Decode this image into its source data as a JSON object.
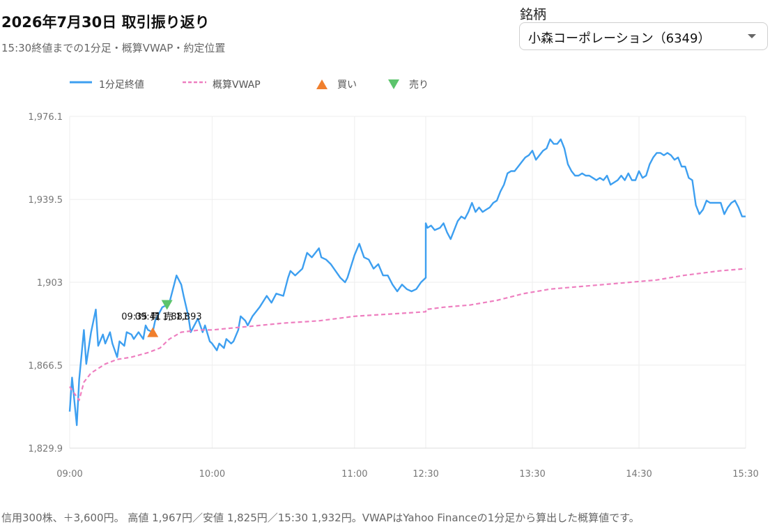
{
  "header": {
    "title": "2026年7月30日 取引振り返り",
    "subtitle": "15:30終値までの1分足・概算VWAP・約定位置"
  },
  "selector": {
    "label": "銘柄",
    "value": "小森コーポレーション（6349）"
  },
  "legend": {
    "close_label": "1分足終値",
    "vwap_label": "概算VWAP",
    "buy_label": "買い",
    "sell_label": "売り"
  },
  "footer": {
    "note": "信用300株、＋3,600円。 高値 1,967円／安値 1,825円／15:30 1,932円。VWAPはYahoo Financeの1分足から算出した概算値です。"
  },
  "colors": {
    "close": "#3d9ff0",
    "vwap": "#ee7fc0",
    "buy": "#f07f2d",
    "sell": "#5cc46c",
    "grid": "#eeeeee"
  },
  "chart_data": {
    "type": "line",
    "y_ticks": [
      "1,829.9",
      "1,866.5",
      "1,903",
      "1,939.5",
      "1,976.1"
    ],
    "ylim": [
      1829.9,
      1976.1
    ],
    "x_ticks": [
      "09:00",
      "10:00",
      "11:00",
      "12:30",
      "13:30",
      "14:30",
      "15:30"
    ],
    "grid": true,
    "legend_position": "top-left",
    "series": [
      {
        "name": "1分足終値",
        "style": "solid",
        "points": [
          [
            "09:00",
            1846
          ],
          [
            "09:01",
            1861
          ],
          [
            "09:03",
            1840
          ],
          [
            "09:04",
            1860
          ],
          [
            "09:06",
            1882
          ],
          [
            "09:07",
            1867
          ],
          [
            "09:09",
            1881
          ],
          [
            "09:11",
            1891
          ],
          [
            "09:12",
            1875
          ],
          [
            "09:14",
            1880
          ],
          [
            "09:15",
            1876
          ],
          [
            "09:17",
            1881
          ],
          [
            "09:18",
            1876
          ],
          [
            "09:20",
            1870
          ],
          [
            "09:21",
            1877
          ],
          [
            "09:23",
            1875
          ],
          [
            "09:24",
            1881
          ],
          [
            "09:26",
            1880
          ],
          [
            "09:27",
            1878
          ],
          [
            "09:29",
            1881
          ],
          [
            "09:31",
            1878
          ],
          [
            "09:32",
            1884
          ],
          [
            "09:33",
            1882
          ],
          [
            "09:35",
            1881
          ],
          [
            "09:36",
            1886
          ],
          [
            "09:38",
            1890
          ],
          [
            "09:39",
            1892
          ],
          [
            "09:41",
            1893
          ],
          [
            "09:42",
            1894
          ],
          [
            "09:44",
            1902
          ],
          [
            "09:45",
            1906
          ],
          [
            "09:47",
            1902
          ],
          [
            "09:48",
            1897
          ],
          [
            "09:50",
            1888
          ],
          [
            "09:51",
            1881
          ],
          [
            "09:53",
            1885
          ],
          [
            "09:54",
            1887
          ],
          [
            "09:56",
            1881
          ],
          [
            "09:57",
            1884
          ],
          [
            "09:59",
            1877
          ],
          [
            "10:00",
            1876
          ],
          [
            "10:02",
            1873
          ],
          [
            "10:03",
            1876
          ],
          [
            "10:05",
            1874
          ],
          [
            "10:06",
            1878
          ],
          [
            "10:08",
            1876
          ],
          [
            "10:09",
            1877
          ],
          [
            "10:11",
            1882
          ],
          [
            "10:12",
            1888
          ],
          [
            "10:14",
            1886
          ],
          [
            "10:15",
            1884
          ],
          [
            "10:17",
            1888
          ],
          [
            "10:20",
            1892
          ],
          [
            "10:23",
            1897
          ],
          [
            "10:25",
            1894
          ],
          [
            "10:27",
            1898
          ],
          [
            "10:30",
            1897
          ],
          [
            "10:32",
            1905
          ],
          [
            "10:33",
            1908
          ],
          [
            "10:35",
            1906
          ],
          [
            "10:38",
            1909
          ],
          [
            "10:40",
            1916
          ],
          [
            "10:42",
            1914
          ],
          [
            "10:45",
            1918
          ],
          [
            "10:46",
            1914
          ],
          [
            "10:48",
            1913
          ],
          [
            "10:50",
            1911
          ],
          [
            "10:52",
            1908
          ],
          [
            "10:54",
            1905
          ],
          [
            "10:56",
            1903
          ],
          [
            "10:57",
            1905
          ],
          [
            "11:00",
            1915
          ],
          [
            "11:02",
            1920
          ],
          [
            "11:04",
            1914
          ],
          [
            "11:06",
            1913
          ],
          [
            "11:08",
            1909
          ],
          [
            "11:10",
            1911
          ],
          [
            "11:12",
            1906
          ],
          [
            "11:14",
            1906
          ],
          [
            "11:16",
            1902
          ],
          [
            "11:18",
            1899
          ],
          [
            "11:20",
            1902
          ],
          [
            "11:22",
            1900
          ],
          [
            "11:24",
            1899
          ],
          [
            "11:26",
            1900
          ],
          [
            "11:28",
            1903
          ],
          [
            "11:30",
            1905
          ],
          [
            "12:30",
            1929
          ],
          [
            "12:31",
            1927
          ],
          [
            "12:33",
            1928
          ],
          [
            "12:35",
            1926
          ],
          [
            "12:38",
            1927
          ],
          [
            "12:40",
            1929
          ],
          [
            "12:42",
            1925
          ],
          [
            "12:44",
            1922
          ],
          [
            "12:46",
            1926
          ],
          [
            "12:48",
            1930
          ],
          [
            "12:50",
            1932
          ],
          [
            "12:52",
            1931
          ],
          [
            "12:54",
            1934
          ],
          [
            "12:56",
            1938
          ],
          [
            "12:58",
            1934
          ],
          [
            "13:00",
            1936
          ],
          [
            "13:02",
            1934
          ],
          [
            "13:04",
            1935
          ],
          [
            "13:06",
            1936
          ],
          [
            "13:08",
            1938
          ],
          [
            "13:10",
            1939
          ],
          [
            "13:12",
            1943
          ],
          [
            "13:14",
            1946
          ],
          [
            "13:16",
            1951
          ],
          [
            "13:18",
            1952
          ],
          [
            "13:20",
            1952
          ],
          [
            "13:22",
            1954
          ],
          [
            "13:24",
            1956
          ],
          [
            "13:26",
            1958
          ],
          [
            "13:28",
            1959
          ],
          [
            "13:30",
            1961
          ],
          [
            "13:32",
            1957
          ],
          [
            "13:34",
            1959
          ],
          [
            "13:36",
            1961
          ],
          [
            "13:38",
            1962
          ],
          [
            "13:40",
            1966
          ],
          [
            "13:42",
            1964
          ],
          [
            "13:44",
            1964
          ],
          [
            "13:46",
            1966
          ],
          [
            "13:48",
            1962
          ],
          [
            "13:50",
            1955
          ],
          [
            "13:52",
            1952
          ],
          [
            "13:54",
            1950
          ],
          [
            "13:56",
            1950
          ],
          [
            "13:58",
            1951
          ],
          [
            "14:00",
            1950
          ],
          [
            "14:02",
            1950
          ],
          [
            "14:04",
            1949
          ],
          [
            "14:06",
            1948
          ],
          [
            "14:08",
            1949
          ],
          [
            "14:10",
            1948
          ],
          [
            "14:12",
            1950
          ],
          [
            "14:14",
            1946
          ],
          [
            "14:16",
            1947
          ],
          [
            "14:18",
            1948
          ],
          [
            "14:20",
            1950
          ],
          [
            "14:22",
            1948
          ],
          [
            "14:24",
            1951
          ],
          [
            "14:26",
            1948
          ],
          [
            "14:28",
            1948
          ],
          [
            "14:30",
            1952
          ],
          [
            "14:32",
            1949
          ],
          [
            "14:34",
            1950
          ],
          [
            "14:36",
            1955
          ],
          [
            "14:38",
            1958
          ],
          [
            "14:40",
            1960
          ],
          [
            "14:42",
            1960
          ],
          [
            "14:44",
            1959
          ],
          [
            "14:46",
            1960
          ],
          [
            "14:48",
            1959
          ],
          [
            "14:50",
            1957
          ],
          [
            "14:52",
            1958
          ],
          [
            "14:54",
            1954
          ],
          [
            "14:56",
            1954
          ],
          [
            "14:58",
            1949
          ],
          [
            "15:00",
            1948
          ],
          [
            "15:02",
            1937
          ],
          [
            "15:04",
            1933
          ],
          [
            "15:06",
            1935
          ],
          [
            "15:08",
            1939
          ],
          [
            "15:10",
            1938
          ],
          [
            "15:12",
            1938
          ],
          [
            "15:14",
            1938
          ],
          [
            "15:16",
            1938
          ],
          [
            "15:18",
            1933
          ],
          [
            "15:20",
            1936
          ],
          [
            "15:22",
            1938
          ],
          [
            "15:24",
            1939
          ],
          [
            "15:26",
            1936
          ],
          [
            "15:28",
            1932
          ],
          [
            "15:30",
            1932
          ]
        ]
      },
      {
        "name": "概算VWAP",
        "style": "dashed",
        "points": [
          [
            "09:00",
            1857
          ],
          [
            "09:04",
            1851
          ],
          [
            "09:06",
            1859
          ],
          [
            "09:09",
            1863
          ],
          [
            "09:15",
            1867
          ],
          [
            "09:20",
            1869
          ],
          [
            "09:26",
            1870
          ],
          [
            "09:33",
            1872
          ],
          [
            "09:38",
            1874
          ],
          [
            "09:42",
            1878
          ],
          [
            "09:47",
            1881
          ],
          [
            "09:55",
            1882
          ],
          [
            "10:00",
            1882
          ],
          [
            "10:10",
            1883
          ],
          [
            "10:20",
            1884
          ],
          [
            "10:30",
            1885
          ],
          [
            "10:45",
            1886
          ],
          [
            "11:00",
            1888
          ],
          [
            "11:15",
            1889
          ],
          [
            "11:30",
            1890
          ],
          [
            "12:30",
            1891
          ],
          [
            "12:40",
            1892
          ],
          [
            "12:55",
            1893
          ],
          [
            "13:10",
            1895
          ],
          [
            "13:25",
            1898
          ],
          [
            "13:40",
            1900
          ],
          [
            "13:55",
            1901
          ],
          [
            "14:10",
            1902
          ],
          [
            "14:25",
            1903
          ],
          [
            "14:40",
            1904
          ],
          [
            "14:55",
            1906
          ],
          [
            "15:05",
            1907
          ],
          [
            "15:15",
            1908
          ],
          [
            "15:30",
            1909
          ]
        ]
      }
    ],
    "markers": [
      {
        "type": "buy",
        "time": "09:35",
        "price": 1881,
        "label": "09:35 買 1,881"
      },
      {
        "type": "sell",
        "time": "09:41",
        "price": 1893,
        "label": "09:41 売 1,893"
      }
    ]
  }
}
